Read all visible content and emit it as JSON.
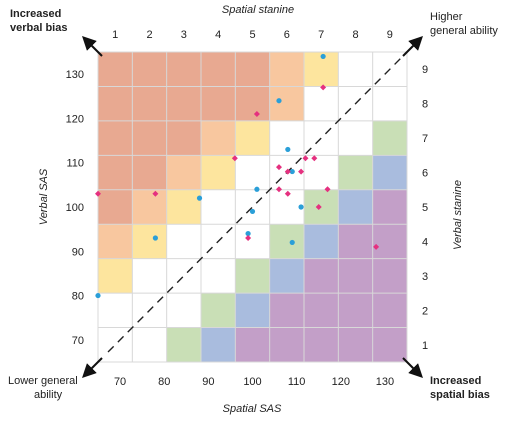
{
  "chart_data": {
    "type": "scatter",
    "xlabel": "Spatial SAS",
    "ylabel": "Verbal SAS",
    "top_label": "Spatial stanine",
    "right_label": "Verbal stanine",
    "xlim": [
      65,
      135
    ],
    "ylim": [
      65,
      135
    ],
    "x_ticks": [
      70,
      80,
      90,
      100,
      110,
      120,
      130
    ],
    "y_ticks": [
      70,
      80,
      90,
      100,
      110,
      120,
      130
    ],
    "stanines": [
      1,
      2,
      3,
      4,
      5,
      6,
      7,
      8,
      9
    ],
    "stanine_bounds": [
      65,
      74,
      82,
      89,
      97,
      104,
      111,
      119,
      126,
      135
    ],
    "corners": {
      "top_left": [
        "Increased",
        "verbal bias"
      ],
      "top_right": [
        "Higher",
        "general ability"
      ],
      "bottom_left": [
        "Lower general",
        "ability"
      ],
      "bottom_right": [
        "Increased",
        "spatial bias"
      ]
    },
    "grid_colors": {
      "dark_orange": "#e8a991",
      "light_orange": "#f8c79f",
      "yellow": "#fde59e",
      "white": "#ffffff",
      "green": "#c9dfb6",
      "blue": "#a9bcde",
      "purple": "#c39fc8"
    },
    "grid": [
      [
        "dark_orange",
        "dark_orange",
        "dark_orange",
        "dark_orange",
        "dark_orange",
        "light_orange",
        "yellow",
        "white",
        "white"
      ],
      [
        "dark_orange",
        "dark_orange",
        "dark_orange",
        "dark_orange",
        "dark_orange",
        "light_orange",
        "white",
        "white",
        "white"
      ],
      [
        "dark_orange",
        "dark_orange",
        "dark_orange",
        "light_orange",
        "yellow",
        "white",
        "white",
        "white",
        "green"
      ],
      [
        "dark_orange",
        "dark_orange",
        "light_orange",
        "yellow",
        "white",
        "white",
        "white",
        "green",
        "blue"
      ],
      [
        "dark_orange",
        "light_orange",
        "yellow",
        "white",
        "white",
        "white",
        "green",
        "blue",
        "purple"
      ],
      [
        "light_orange",
        "yellow",
        "white",
        "white",
        "white",
        "green",
        "blue",
        "purple",
        "purple"
      ],
      [
        "yellow",
        "white",
        "white",
        "white",
        "green",
        "blue",
        "purple",
        "purple",
        "purple"
      ],
      [
        "white",
        "white",
        "white",
        "green",
        "blue",
        "purple",
        "purple",
        "purple",
        "purple"
      ],
      [
        "white",
        "white",
        "green",
        "blue",
        "purple",
        "purple",
        "purple",
        "purple",
        "purple"
      ]
    ],
    "series": [
      {
        "marker": "circle",
        "color": "#2a9fd8",
        "points": [
          [
            116,
            134
          ],
          [
            106,
            124
          ],
          [
            108,
            113
          ],
          [
            109,
            108
          ],
          [
            101,
            104
          ],
          [
            88,
            102
          ],
          [
            100,
            99
          ],
          [
            111,
            100
          ],
          [
            99,
            94
          ],
          [
            109,
            92
          ],
          [
            78,
            93
          ],
          [
            65,
            80
          ]
        ]
      },
      {
        "marker": "diamond",
        "color": "#e5307f",
        "points": [
          [
            101,
            121
          ],
          [
            116,
            127
          ],
          [
            96,
            111
          ],
          [
            106,
            109
          ],
          [
            108,
            108
          ],
          [
            112,
            111
          ],
          [
            114,
            111
          ],
          [
            117,
            104
          ],
          [
            111,
            108
          ],
          [
            108,
            103
          ],
          [
            106,
            104
          ],
          [
            115,
            100
          ],
          [
            99,
            93
          ],
          [
            128,
            91
          ],
          [
            78,
            103
          ],
          [
            65,
            103
          ]
        ]
      }
    ]
  }
}
